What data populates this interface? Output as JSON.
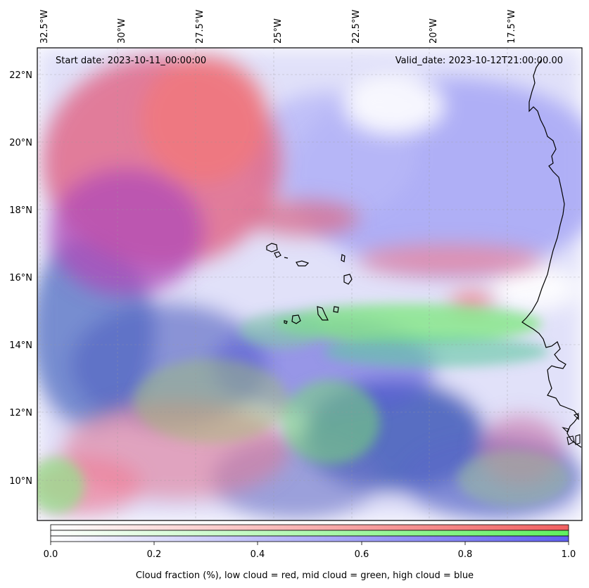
{
  "map": {
    "start_date_text": "Start date: 2023-10-11_00:00:00",
    "valid_date_text": "Valid_date: 2023-10-12T21:00:00.00",
    "lon_labels": [
      "32.5°W",
      "30°W",
      "27.5°W",
      "25°W",
      "22.5°W",
      "20°W",
      "17.5°W"
    ],
    "lat_labels": [
      "22°N",
      "20°N",
      "18°N",
      "16°N",
      "14°N",
      "12°N",
      "10°N"
    ],
    "layers": [
      {
        "name": "low cloud",
        "color": "#f08080"
      },
      {
        "name": "mid cloud",
        "color": "#80f080"
      },
      {
        "name": "high cloud",
        "color": "#8080f0"
      }
    ]
  },
  "colorbar": {
    "tick_labels": [
      "0.0",
      "0.2",
      "0.4",
      "0.6",
      "0.8",
      "1.0"
    ],
    "colors": [
      "#f06060",
      "#60f060",
      "#6060f0"
    ],
    "label": "Cloud fraction (%), low cloud = red, mid cloud = green, high cloud = blue"
  }
}
